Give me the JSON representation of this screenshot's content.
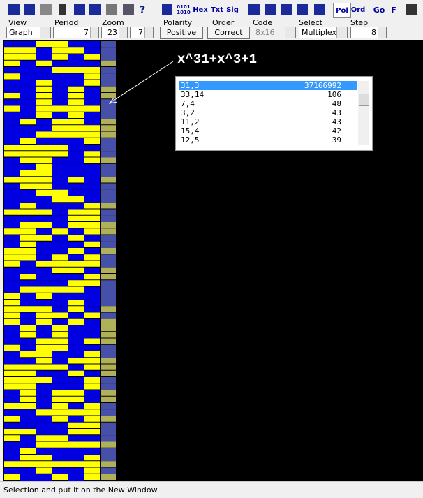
{
  "toolbar": {
    "buttons": [
      "0101",
      "1010",
      "Hex",
      "Txt",
      "Sig",
      "Pol",
      "Ord",
      "Go",
      "F"
    ]
  },
  "controls": {
    "view": {
      "label": "View",
      "value": "Graph"
    },
    "period": {
      "label": "Period",
      "value": "7"
    },
    "zoom": {
      "label": "Zoom",
      "values": [
        "23",
        "7"
      ]
    },
    "polarity": {
      "label": "Polarity",
      "value": "Positive"
    },
    "order": {
      "label": "Order",
      "value": "Correct"
    },
    "code": {
      "label": "Code",
      "value": "8x16"
    },
    "select": {
      "label": "Select",
      "value": "Multiplex"
    },
    "step": {
      "label": "Step",
      "value": "8"
    }
  },
  "annotation": "x^31+x^3+1",
  "listbox": {
    "rows": [
      [
        "31,3",
        "37166992"
      ],
      [
        "33,14",
        "106"
      ],
      [
        "7,4",
        "48"
      ],
      [
        "3,2",
        "43"
      ],
      [
        "11,2",
        "43"
      ],
      [
        "15,4",
        "42"
      ],
      [
        "12,5",
        "39"
      ]
    ]
  },
  "status": "Selection and put it on the New Window"
}
